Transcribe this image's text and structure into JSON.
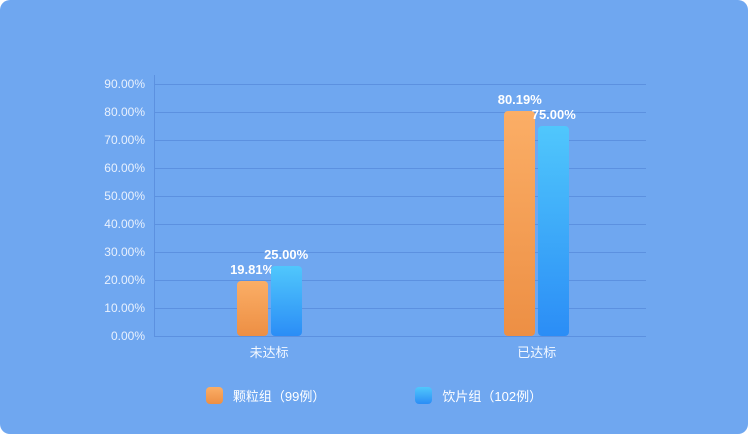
{
  "chart_data": {
    "type": "bar",
    "categories": [
      "未达标",
      "已达标"
    ],
    "series": [
      {
        "name": "颗粒组（99例）",
        "values": [
          19.81,
          80.19
        ],
        "labels": [
          "19.81%",
          "80.19%"
        ],
        "color_top": "#FBAE66",
        "color_bottom": "#ED8F44"
      },
      {
        "name": "饮片组（102例）",
        "values": [
          25.0,
          75.0
        ],
        "labels": [
          "25.00%",
          "75.00%"
        ],
        "color_top": "#50C7FC",
        "color_bottom": "#2B8DF6"
      }
    ],
    "y_axis": {
      "min": 0,
      "max": 90,
      "tick_step": 10,
      "tick_labels": [
        "0.00%",
        "10.00%",
        "20.00%",
        "30.00%",
        "40.00%",
        "50.00%",
        "60.00%",
        "70.00%",
        "80.00%",
        "90.00%"
      ]
    },
    "xlabel": "",
    "ylabel": "",
    "grid": true,
    "legend_position": "bottom"
  },
  "colors": {
    "background": "#6FA7F0",
    "gridline": "#5C91E0"
  }
}
